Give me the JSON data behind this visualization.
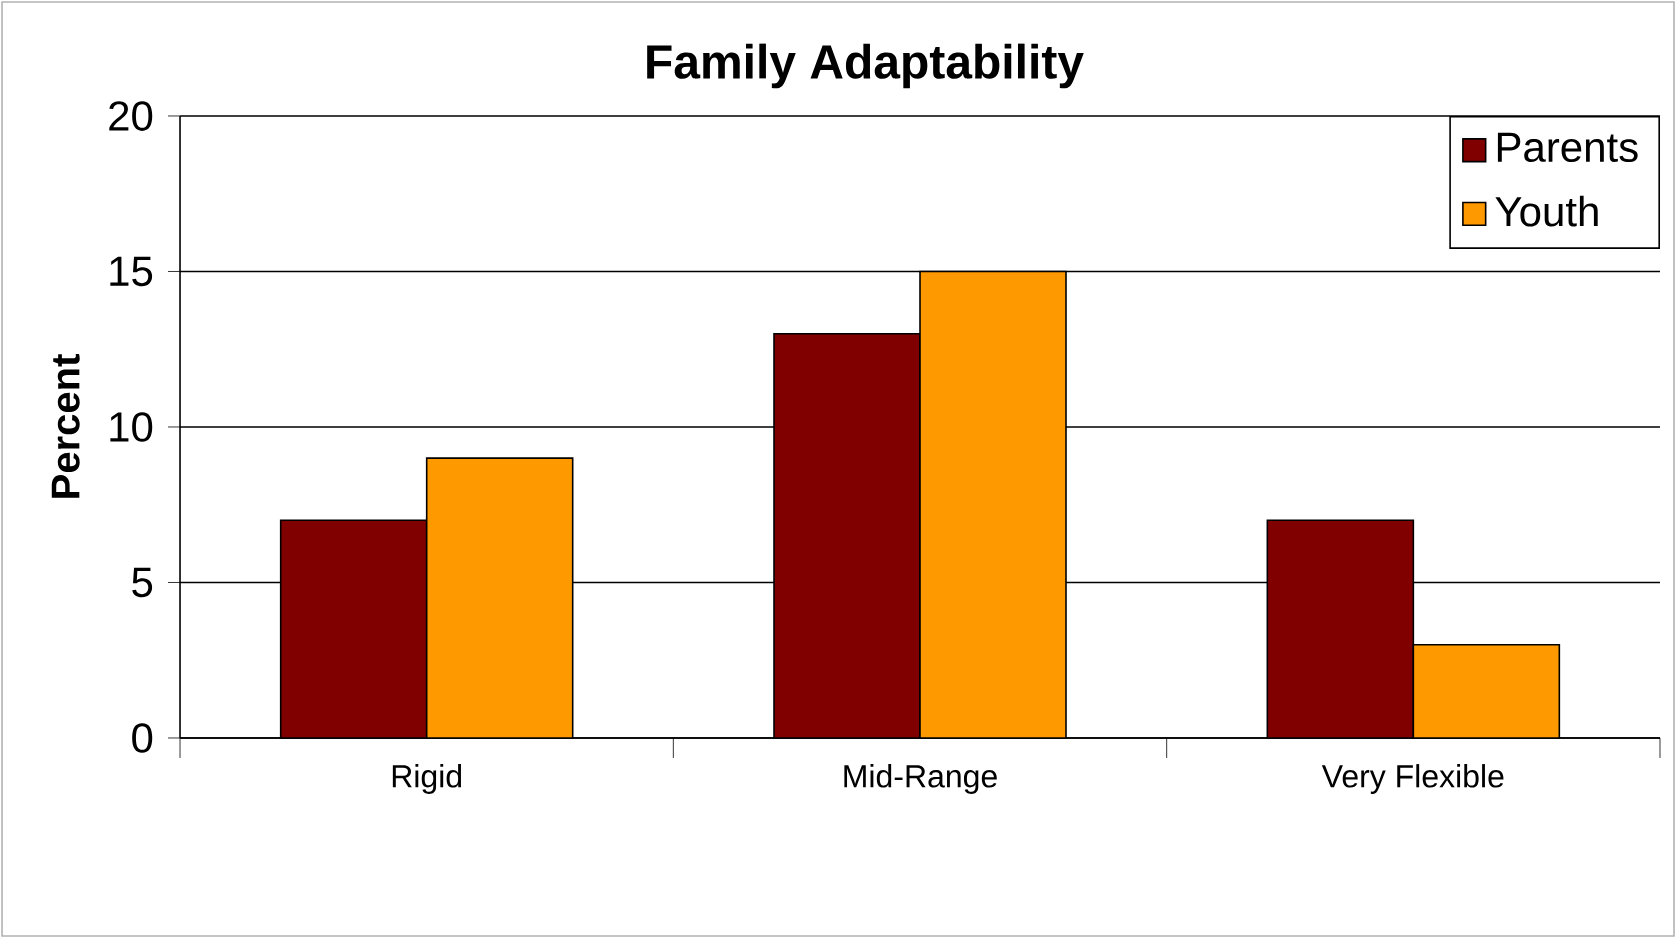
{
  "chart_data": {
    "type": "bar",
    "title": "Family Adaptability",
    "ylabel": "Percent",
    "categories": [
      "Rigid",
      "Mid-Range",
      "Very Flexible"
    ],
    "series": [
      {
        "name": "Parents",
        "color": "#800000",
        "values": [
          7,
          13,
          7
        ]
      },
      {
        "name": "Youth",
        "color": "#ff9900",
        "values": [
          9,
          15,
          3
        ]
      }
    ],
    "ylim": [
      0,
      20
    ],
    "yticks": [
      0,
      5,
      10,
      15,
      20
    ],
    "grid": "y",
    "legend": "top right"
  }
}
